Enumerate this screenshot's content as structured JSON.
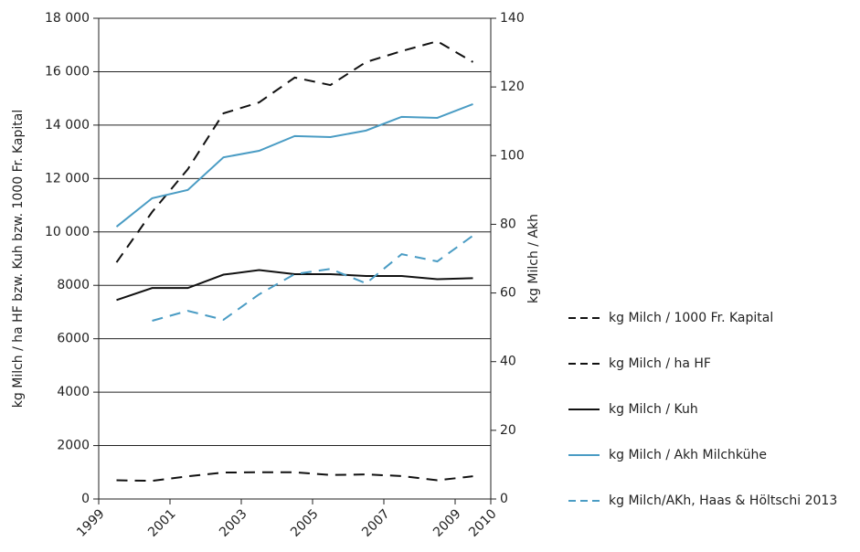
{
  "chart_data": {
    "type": "line",
    "y_label": "kg Milch / ha HF bzw. Kuh bzw. 1000 Fr. Kapital",
    "y2_label": "kg Milch / Akh",
    "x": [
      1999.5,
      2000.5,
      2001.5,
      2002.5,
      2003.5,
      2004.5,
      2005.5,
      2006.5,
      2007.5,
      2008.5,
      2009.5
    ],
    "xlim": [
      1999,
      2010
    ],
    "xticks": [
      1999,
      2001,
      2003,
      2005,
      2007,
      2009,
      2010
    ],
    "ylim": [
      0,
      18000
    ],
    "yticks": [
      0,
      2000,
      4000,
      6000,
      8000,
      {
        "value": 10000,
        "label": "10 000"
      },
      {
        "value": 12000,
        "label": "12 000"
      },
      {
        "value": 14000,
        "label": "14 000"
      },
      {
        "value": 16000,
        "label": "16 000"
      },
      {
        "value": 18000,
        "label": "18 000"
      }
    ],
    "y2lim": [
      0,
      140
    ],
    "y2ticks": [
      0,
      20,
      40,
      60,
      80,
      100,
      120,
      140
    ],
    "grid": true,
    "legend": "right",
    "series": [
      {
        "name": "kg Milch / 1000 Fr. Kapital",
        "color": "#111111",
        "dashed": true,
        "values": [
          700,
          680,
          850,
          990,
          1000,
          1000,
          900,
          920,
          860,
          700,
          850
        ]
      },
      {
        "name": "kg Milch / ha HF",
        "color": "#111111",
        "dashed": true,
        "values": [
          8860,
          10750,
          12350,
          14440,
          14850,
          15780,
          15500,
          16360,
          16770,
          17140,
          16360
        ]
      },
      {
        "name": "kg Milch / Kuh",
        "color": "#111111",
        "dashed": false,
        "values": [
          7450,
          7900,
          7900,
          8400,
          8570,
          8420,
          8420,
          8350,
          8350,
          8230,
          8270
        ]
      },
      {
        "name": "kg Milch / Akh Milchkühe",
        "color": "#4a9cc4",
        "dashed": false,
        "axis": "y2",
        "values": [
          79.3,
          87.6,
          90,
          99.5,
          101.4,
          105.7,
          105.4,
          107.3,
          111.3,
          111,
          115
        ]
      },
      {
        "name": "kg Milch/AKh, Haas & Höltschi 2013",
        "color": "#4a9cc4",
        "dashed": true,
        "axis": "y2",
        "values": [
          null,
          51.9,
          54.8,
          52.2,
          59.6,
          65.5,
          67,
          62.8,
          71.3,
          69.2,
          76.7
        ]
      }
    ]
  }
}
